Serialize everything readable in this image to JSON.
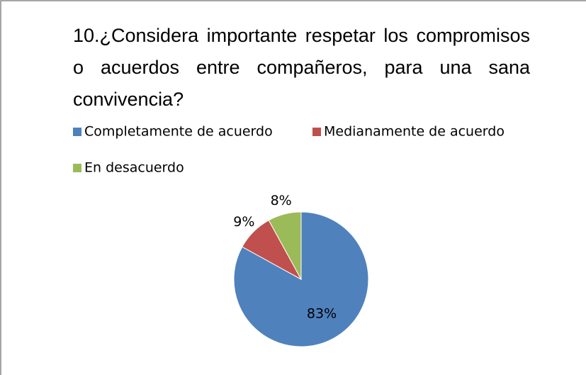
{
  "chart_data": {
    "type": "pie",
    "title": "10.¿Considera importante respetar los compromisos o acuerdos entre compañeros, para una sana convivencia?",
    "categories": [
      "Completamente de acuerdo",
      "Medianamente de acuerdo",
      "En desacuerdo"
    ],
    "values": [
      83,
      9,
      8
    ],
    "value_labels": [
      "83%",
      "9%",
      "8%"
    ],
    "colors": [
      "#4f81bd",
      "#c0504d",
      "#9bbb59"
    ],
    "legend": "top"
  }
}
